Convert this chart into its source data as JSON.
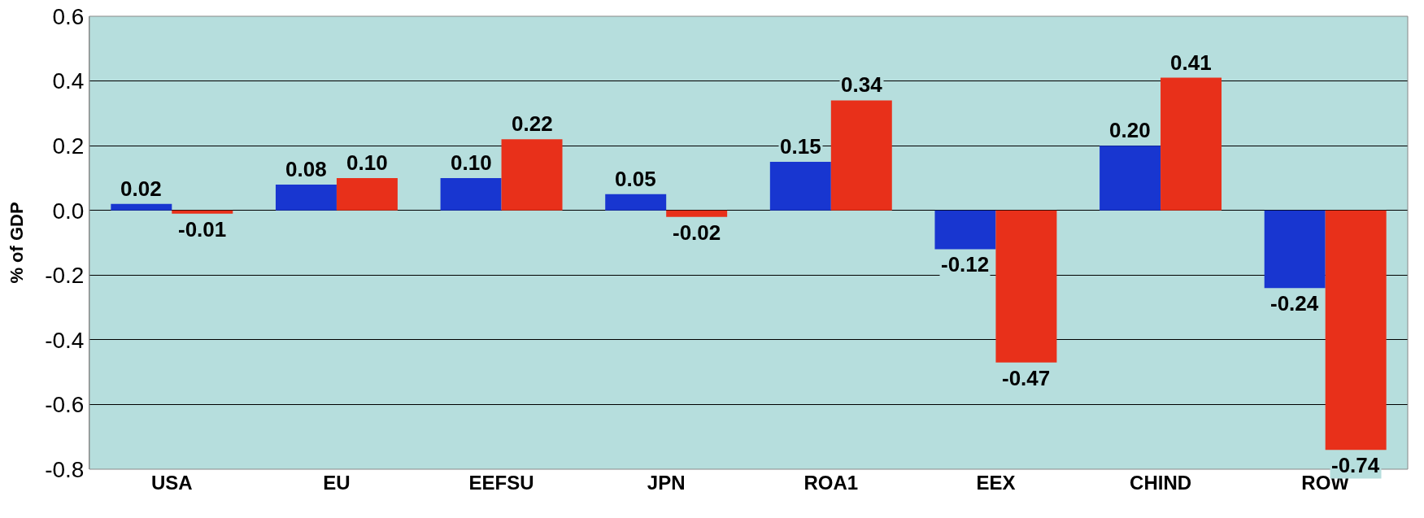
{
  "chart_data": {
    "type": "bar",
    "ylabel": "% of GDP",
    "categories": [
      "USA",
      "EU",
      "EEFSU",
      "JPN",
      "ROA1",
      "EEX",
      "CHIND",
      "ROW"
    ],
    "series": [
      {
        "color": "#1836d0",
        "values": [
          0.02,
          0.08,
          0.1,
          0.05,
          0.15,
          -0.12,
          0.2,
          -0.24
        ],
        "value_labels": [
          "0.02",
          "0.08",
          "0.10",
          "0.05",
          "0.15",
          "-0.12",
          "0.20",
          "-0.24"
        ]
      },
      {
        "color": "#e8301a",
        "values": [
          -0.01,
          0.1,
          0.22,
          -0.02,
          0.34,
          -0.47,
          0.41,
          -0.74
        ],
        "value_labels": [
          "-0.01",
          "0.10",
          "0.22",
          "-0.02",
          "0.34",
          "-0.47",
          "0.41",
          "-0.74"
        ]
      }
    ],
    "ylim": [
      -0.8,
      0.6
    ],
    "yticks": [
      {
        "value": -0.8,
        "label": "-0.8"
      },
      {
        "value": -0.6,
        "label": "-0.6"
      },
      {
        "value": -0.4,
        "label": "-0.4"
      },
      {
        "value": -0.2,
        "label": "-0.2"
      },
      {
        "value": 0,
        "label": "0.0"
      },
      {
        "value": 0.2,
        "label": "0.2"
      },
      {
        "value": 0.4,
        "label": "0.4"
      },
      {
        "value": 0.6,
        "label": "0.6"
      }
    ],
    "grid": "y"
  }
}
